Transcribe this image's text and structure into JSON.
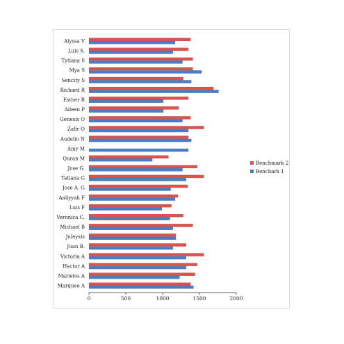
{
  "chart_data": {
    "type": "bar",
    "orientation": "horizontal",
    "categories": [
      "Alyssa V",
      "Luis S.",
      "Tytiana S",
      "Mya S",
      "Sencity S",
      "Richard R",
      "Esther R",
      "Aileen P",
      "Genesis O",
      "Zafir O",
      "Audelio N",
      "Amy M",
      "Quran M",
      "Jose G.",
      "Tatiana G",
      "Jose A. G",
      "Aaliyyah F",
      "Luis F",
      "Veronica C.",
      "Michael B",
      "Juleyxis",
      "Juan B.",
      "Victoria A",
      "Hector A",
      "Marielos A",
      "Marquee A"
    ],
    "series": [
      {
        "name": "Benchmark 2",
        "color": "#d9534f",
        "values": [
          1380,
          1350,
          1410,
          1410,
          1280,
          1690,
          1350,
          1220,
          1380,
          1560,
          1350,
          0,
          1080,
          1470,
          1560,
          1340,
          1210,
          1120,
          1280,
          1410,
          1180,
          1320,
          1560,
          1470,
          1440,
          1380
        ]
      },
      {
        "name": "Benchark 1",
        "color": "#4a7dc4",
        "values": [
          1170,
          1140,
          1270,
          1530,
          1390,
          1760,
          1010,
          1010,
          1270,
          1350,
          1390,
          1350,
          860,
          1270,
          1320,
          1110,
          1170,
          990,
          1100,
          1140,
          1180,
          1140,
          1320,
          1320,
          1230,
          1420
        ]
      }
    ],
    "xlim": [
      0,
      2000
    ],
    "xticks": [
      "0",
      "500",
      "1000",
      "1500",
      "2000"
    ],
    "grid": false,
    "legend": "right"
  }
}
